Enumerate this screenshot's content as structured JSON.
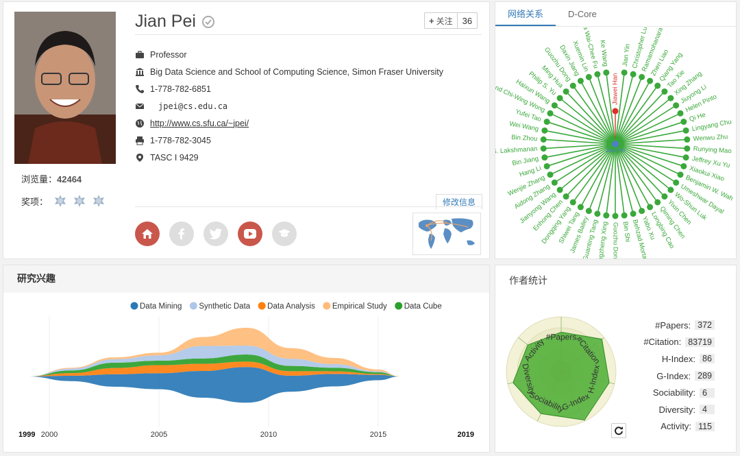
{
  "profile": {
    "name": "Jian Pei",
    "follow_label": "关注",
    "follow_count": "36",
    "views_label": "浏览量：",
    "views_count": "42464",
    "awards_label": "奖项：",
    "position": "Professor",
    "affiliation": "Big Data Science and School of Computing Science, Simon Fraser University",
    "phone": "1-778-782-6851",
    "email": "jpei@cs.edu.ca",
    "homepage": "http://www.cs.sfu.ca/~jpei/",
    "fax": "1-778-782-3045",
    "address": "TASC I 9429",
    "edit_label": "修改信息",
    "icons": {
      "verified": "check-circle-icon",
      "position": "briefcase-icon",
      "affiliation": "institution-icon",
      "phone": "phone-icon",
      "email": "envelope-icon",
      "homepage": "globe-icon",
      "fax": "printer-icon",
      "address": "map-marker-icon"
    },
    "socials": [
      "home-icon",
      "facebook-icon",
      "twitter-icon",
      "youtube-icon",
      "graduation-cap-icon"
    ]
  },
  "network": {
    "tabs": [
      "网络关系",
      "D-Core"
    ],
    "active_tab": 0,
    "center": "Jian Pei",
    "highlighted": "Jiawei Han",
    "nodes": [
      "Jiawei Han",
      "Jian Yin",
      "Christopher Lu",
      "Ramamohanara",
      "Zhen Liao",
      "Qiang Yang",
      "Tao Xie",
      "Xing Zhang",
      "Jiuyong Li",
      "Helen Pinto",
      "Qi He",
      "Lingyang Chu",
      "Wenwu Zhu",
      "Runying Mao",
      "Jeffrey Xu Yu",
      "Xiaokui Xiao",
      "Benjamin W. Wah",
      "Umeshwar Dayal",
      "Wo-Shun Luk",
      "Yixin Chen",
      "Qiming Chen",
      "Longbing Cao",
      "Yabo Xu",
      "Behzad Mortaz",
      "Bin Shi",
      "Guozhu Dong",
      "Zhengzheng Xing",
      "Guanting Tang",
      "James Bailey",
      "Shiwei Tang",
      "Dongqing Yang",
      "Enhong Chen",
      "Jianyong Wang",
      "Aidong Zhang",
      "Wenjie Zhang",
      "Hang Li",
      "Bin Jiang",
      "S. Lakshmanan",
      "Bin Zhou",
      "Wei Wang",
      "Yufei Tao",
      "Raymond Chi-Wing Wong",
      "Haixun Wang",
      "Philip S. Yu",
      "Ming Hua",
      "Guozhu Dong",
      "Daxin Jiang",
      "Xuemin Lin",
      "Ada Wai-Chee Fu",
      "Ke Wang"
    ],
    "colors": {
      "edge": "#3aa83a",
      "center": "#4e7fc6",
      "highlight": "#d9312b"
    }
  },
  "interest": {
    "title": "研究兴趣",
    "year_start": "1999",
    "year_end": "2019",
    "chart_data": {
      "type": "area",
      "x": [
        1999,
        2001,
        2003,
        2005,
        2007,
        2009,
        2011,
        2013,
        2015,
        2016
      ],
      "xticks": [
        "2000",
        "2005",
        "2010",
        "2015"
      ],
      "xlim": [
        1999,
        2019
      ],
      "series": [
        {
          "name": "Data Mining",
          "color": "#2a78b6",
          "values": [
            0,
            6,
            14,
            18,
            30,
            40,
            18,
            14,
            6,
            0
          ]
        },
        {
          "name": "Synthetic Data",
          "color": "#aec7e8",
          "values": [
            0,
            2,
            4,
            6,
            14,
            10,
            8,
            4,
            1,
            0
          ]
        },
        {
          "name": "Data Analysis",
          "color": "#ff7f0e",
          "values": [
            0,
            3,
            7,
            9,
            8,
            6,
            5,
            3,
            1,
            0
          ]
        },
        {
          "name": "Empirical Study",
          "color": "#ffbb78",
          "values": [
            0,
            1,
            2,
            3,
            10,
            20,
            12,
            7,
            2,
            0
          ]
        },
        {
          "name": "Data Cube",
          "color": "#2ca02c",
          "values": [
            0,
            3,
            6,
            5,
            6,
            8,
            6,
            4,
            2,
            0
          ]
        }
      ]
    }
  },
  "stats": {
    "title": "作者统计",
    "refresh_icon": "refresh-icon",
    "items": [
      {
        "key": "#Papers:",
        "value": "372"
      },
      {
        "key": "#Citation:",
        "value": "83719"
      },
      {
        "key": "H-Index:",
        "value": "86"
      },
      {
        "key": "G-Index:",
        "value": "289"
      },
      {
        "key": "Sociability:",
        "value": "6"
      },
      {
        "key": "Diversity:",
        "value": "4"
      },
      {
        "key": "Activity:",
        "value": "115"
      }
    ],
    "radar_axes": [
      "#Papers",
      "#Citation",
      "H-Index",
      "G-Index",
      "Sociability",
      "Diversity",
      "Activity"
    ],
    "radar_values": [
      0.72,
      0.95,
      0.9,
      0.98,
      0.85,
      0.9,
      0.78
    ]
  }
}
